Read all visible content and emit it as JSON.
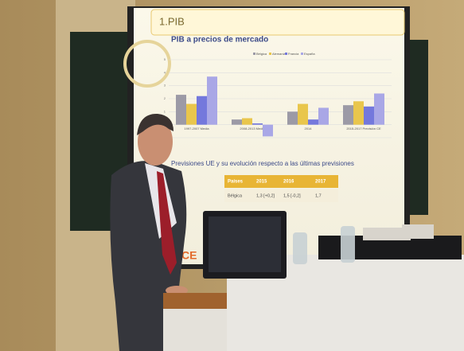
{
  "slide": {
    "section": "1.PIB",
    "chart_data": {
      "type": "bar",
      "title": "PIB a precios de mercado",
      "categories": [
        "1997-2007 Media",
        "2008-2013 Media",
        "2014",
        "2015-2017 Previsión CE"
      ],
      "series": [
        {
          "name": "Bélgica",
          "color": "#9c9aa6",
          "values": [
            2.3,
            0.4,
            1.0,
            1.5
          ]
        },
        {
          "name": "Alemania",
          "color": "#e9c64c",
          "values": [
            1.6,
            0.5,
            1.6,
            1.8
          ]
        },
        {
          "name": "Francia",
          "color": "#7478dc",
          "values": [
            2.2,
            0.1,
            0.4,
            1.4
          ]
        },
        {
          "name": "España",
          "color": "#a9a7e6",
          "values": [
            3.7,
            -0.9,
            1.3,
            2.4
          ]
        }
      ],
      "ylim": [
        -1,
        5
      ],
      "yticks": [
        -1,
        0,
        1,
        2,
        3,
        4,
        5
      ],
      "grid": true,
      "legend": "top-right"
    },
    "subtitle": "Previsiones UE y su evolución respecto a las últimas previsiones",
    "table": {
      "header": [
        "Países",
        "2015",
        "2016",
        "2017"
      ],
      "rows": [
        [
          "Bélgica",
          "1,3 [+0,2]",
          "1,5 [-0,2]",
          "1,7"
        ]
      ]
    },
    "logo": "CE"
  }
}
